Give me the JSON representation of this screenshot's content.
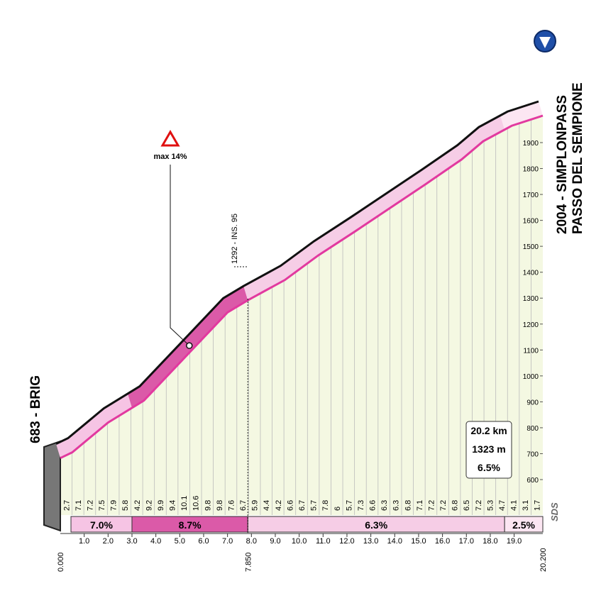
{
  "chart_data": {
    "type": "elevation-profile",
    "start_label": "683 - BRIG",
    "finish_label": [
      "2004 - SIMPLONPASS",
      "PASSO DEL SEMPIONE"
    ],
    "profile": {
      "x": [
        0,
        0.5,
        2,
        3.5,
        5.2,
        7,
        7.85,
        9.4,
        10.8,
        12.3,
        15.3,
        16.8,
        17.7,
        18.9,
        20.2
      ],
      "elevation": [
        683,
        705,
        820,
        905,
        1070,
        1245,
        1292,
        1370,
        1465,
        1555,
        1740,
        1835,
        1905,
        1965,
        2004
      ]
    },
    "color": "#e2399f",
    "xlim": [
      0,
      20.2
    ],
    "ylim": [
      600,
      1900
    ],
    "yticks": [
      600,
      700,
      800,
      900,
      1000,
      1100,
      1200,
      1300,
      1400,
      1500,
      1600,
      1700,
      1800,
      1900
    ],
    "xticks": [
      {
        "value": 1,
        "label": "1.0"
      },
      {
        "value": 2,
        "label": "2.0"
      },
      {
        "value": 3,
        "label": "3.0"
      },
      {
        "value": 4,
        "label": "4.0"
      },
      {
        "value": 5,
        "label": "5.0"
      },
      {
        "value": 6,
        "label": "6.0"
      },
      {
        "value": 7,
        "label": "7.0"
      },
      {
        "value": 8,
        "label": "8.0"
      },
      {
        "value": 9,
        "label": "9.0"
      },
      {
        "value": 10,
        "label": "10.0"
      },
      {
        "value": 11,
        "label": "11.0"
      },
      {
        "value": 12,
        "label": "12.0"
      },
      {
        "value": 13,
        "label": "13.0"
      },
      {
        "value": 14,
        "label": "14.0"
      },
      {
        "value": 15,
        "label": "15.0"
      },
      {
        "value": 16,
        "label": "16.0"
      },
      {
        "value": 17,
        "label": "17.0"
      },
      {
        "value": 18,
        "label": "18.0"
      },
      {
        "value": 19,
        "label": "19.0"
      }
    ],
    "km_marks": [
      {
        "value": 0,
        "label": "0.000"
      },
      {
        "value": 7.85,
        "label": "7.850"
      },
      {
        "value": 20.2,
        "label": "20.200"
      }
    ],
    "gradients": [
      2.7,
      7.1,
      7.2,
      7.5,
      7.9,
      5.8,
      4.2,
      9.2,
      9.9,
      9.4,
      10.1,
      10.6,
      9.8,
      9.8,
      7.6,
      6.7,
      5.9,
      4.4,
      4.2,
      6.6,
      6.7,
      5.7,
      7.8,
      6.0,
      5.7,
      7.3,
      6.6,
      6.3,
      6.3,
      6.8,
      7.1,
      7.2,
      7.2,
      6.8,
      6.5,
      7.2,
      5.3,
      4.7,
      4.1,
      3.1,
      1.7
    ],
    "segments": {
      "start": [
        0,
        3,
        7.85,
        18.6
      ],
      "end": [
        3,
        7.85,
        18.6,
        20.2
      ],
      "values": [
        7.0,
        8.7,
        6.3,
        2.5
      ],
      "value_labels": [
        "7.0%",
        "8.7%",
        "6.3%",
        "2.5%"
      ],
      "colors": [
        "#f6c4e4",
        "#db5aa8",
        "#f6cde6",
        "#fce6f2"
      ]
    },
    "max_gradient": {
      "label": "max 14%",
      "x": 5.4
    },
    "waypoint": {
      "x": 7.85,
      "label": "1292 - INS. 95"
    },
    "summary": [
      "20.2 km",
      "1323 m",
      "6.5%"
    ],
    "logo": "SDS"
  }
}
